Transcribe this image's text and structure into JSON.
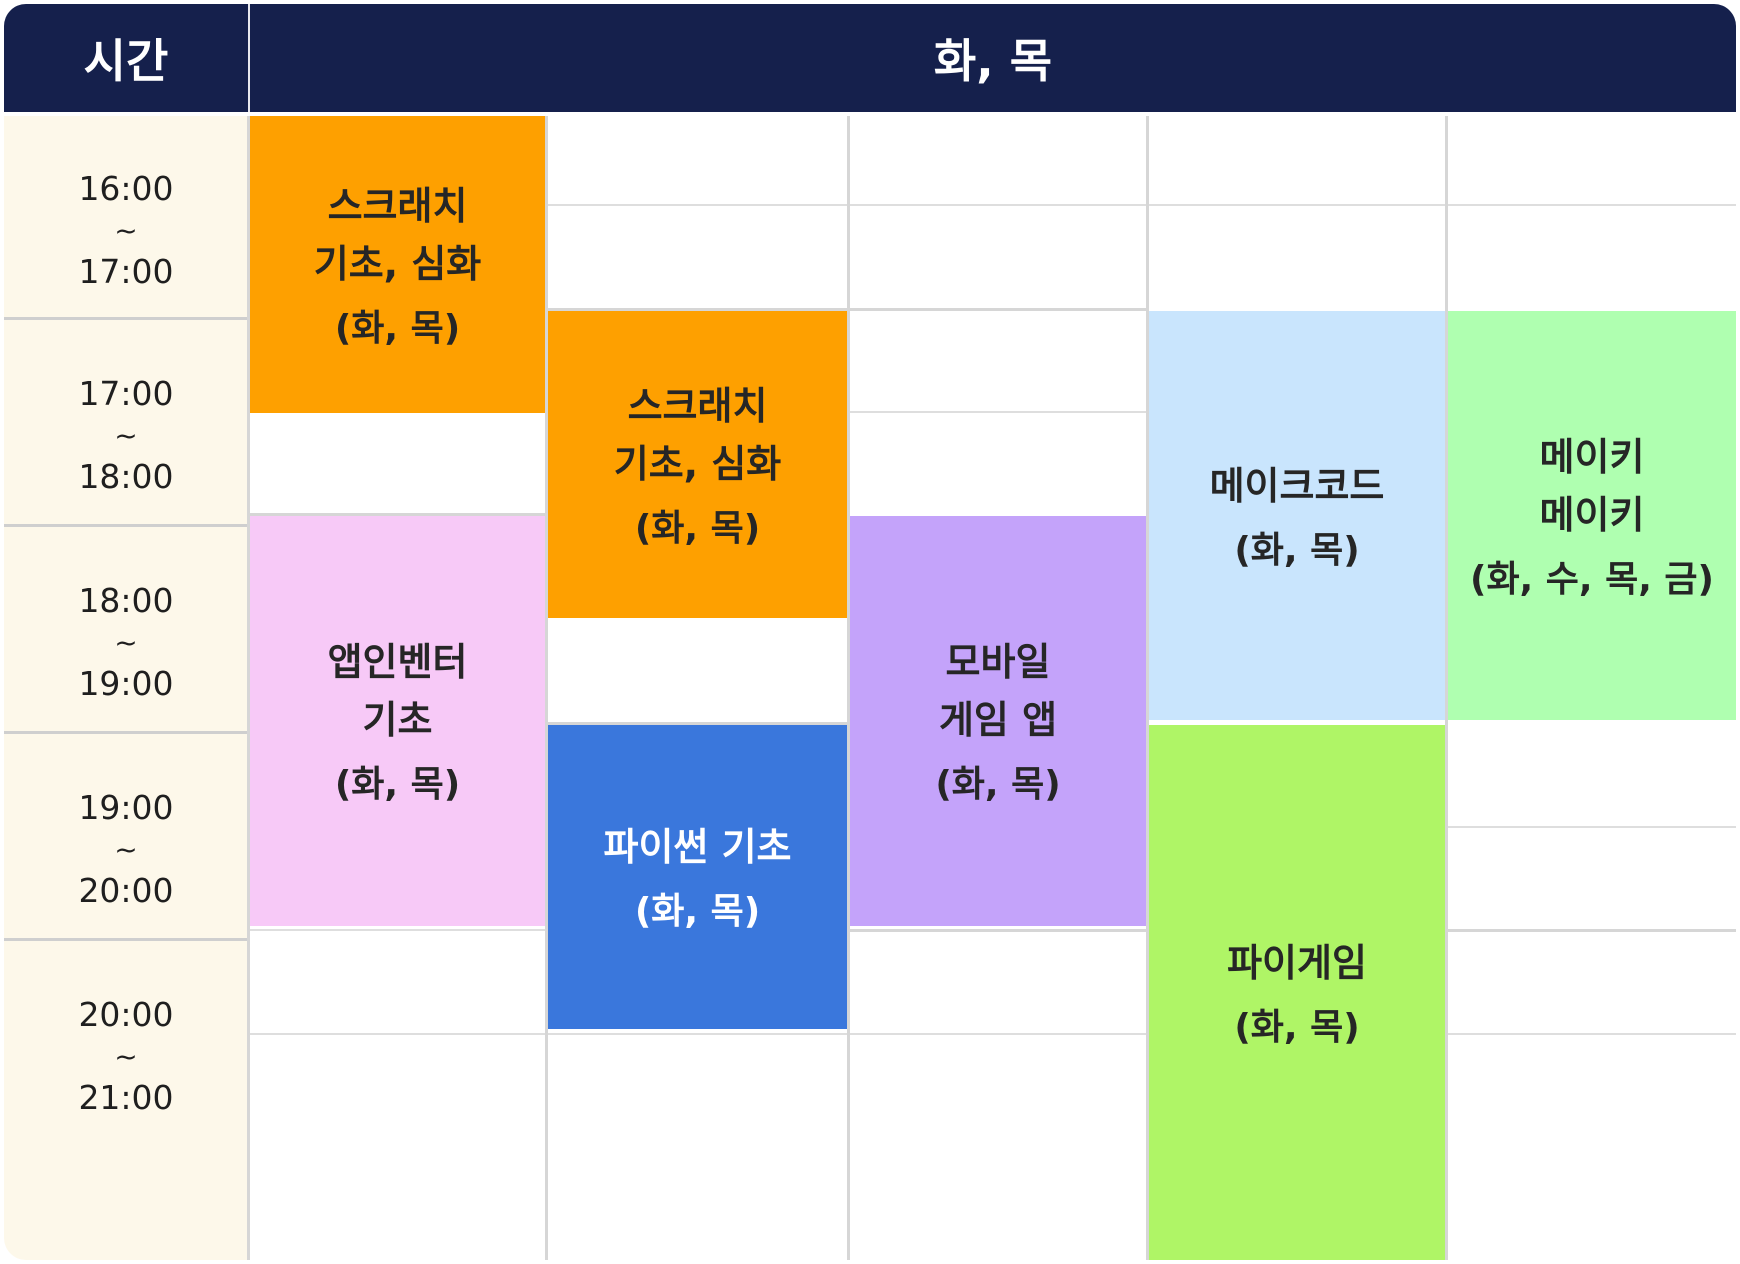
{
  "header": {
    "time_label": "시간",
    "day_label": "화, 목"
  },
  "time_slots": [
    {
      "start": "16:00",
      "sep": "~",
      "end": "17:00"
    },
    {
      "start": "17:00",
      "sep": "~",
      "end": "18:00"
    },
    {
      "start": "18:00",
      "sep": "~",
      "end": "19:00"
    },
    {
      "start": "19:00",
      "sep": "~",
      "end": "20:00"
    },
    {
      "start": "20:00",
      "sep": "~",
      "end": "21:00"
    }
  ],
  "classes": [
    {
      "name": "스크래치\n기초, 심화",
      "days": "(화, 목)",
      "color": "#fea000"
    },
    {
      "name": "앱인벤터\n기초",
      "days": "(화, 목)",
      "color": "#f7c9f7"
    },
    {
      "name": "스크래치\n기초, 심화",
      "days": "(화, 목)",
      "color": "#fea000"
    },
    {
      "name": "파이썬 기초",
      "days": "(화, 목)",
      "color": "#3a77dc"
    },
    {
      "name": "모바일\n게임 앱",
      "days": "(화, 목)",
      "color": "#c4a3fa"
    },
    {
      "name": "메이크코드",
      "days": "(화, 목)",
      "color": "#c9e5fd"
    },
    {
      "name": "파이게임",
      "days": "(화, 목)",
      "color": "#aff566"
    },
    {
      "name": "메이키\n메이키",
      "days": "(화, 수, 목, 금)",
      "color": "#afffb0"
    }
  ]
}
